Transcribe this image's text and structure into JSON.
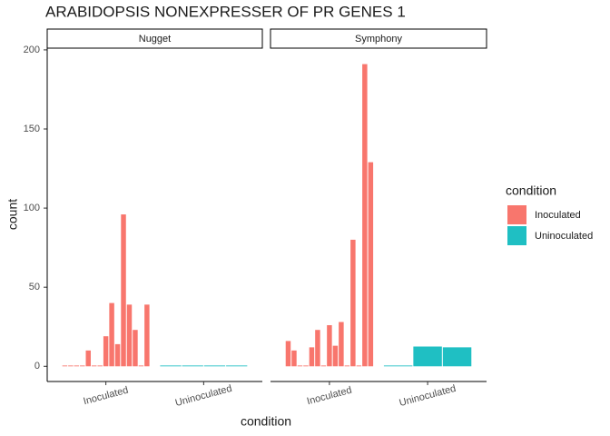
{
  "chart_data": {
    "type": "bar",
    "title": "ARABIDOPSIS NONEXPRESSER OF PR GENES 1",
    "x_label": "condition",
    "y_label": "count",
    "ylim": [
      -9.6,
      201.1
    ],
    "yticks": [
      0,
      50,
      100,
      150,
      200
    ],
    "categories": [
      "Inoculated",
      "Uninoculated"
    ],
    "legend_title": "condition",
    "legend": [
      {
        "name": "Inoculated",
        "color": "#f8766d"
      },
      {
        "name": "Uninoculated",
        "color": "#1fbfc3"
      }
    ],
    "facets": [
      {
        "name": "Nugget",
        "values": [
          [
            0.5,
            0.5,
            0.5,
            0.5,
            10,
            0.5,
            0.5,
            19,
            40,
            14,
            96,
            39,
            23,
            0.5,
            39
          ],
          [
            0.5,
            0.5,
            0.5,
            0.5
          ]
        ]
      },
      {
        "name": "Symphony",
        "values": [
          [
            16,
            10,
            0.5,
            0.5,
            12,
            23,
            0.5,
            26,
            13,
            28,
            0.5,
            80,
            0.5,
            191,
            129
          ],
          [
            0.5,
            12.5,
            12
          ]
        ]
      }
    ]
  }
}
